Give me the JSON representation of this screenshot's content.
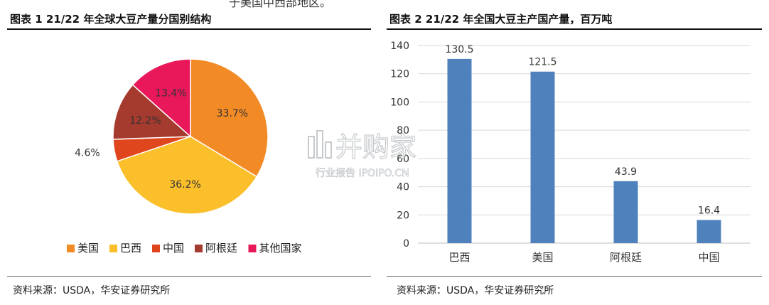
{
  "header": {
    "top_fragment": "于美国中西部地区。",
    "left_title": "图表 1 21/22 年全球大豆产量分国别结构",
    "right_title": "图表 2 21/22 年全国大豆主产国产量，百万吨"
  },
  "footer": {
    "left_source": "资料来源：USDA，华安证券研究所",
    "right_source": "资料来源：USDA，华安证券研究所"
  },
  "watermark": {
    "brand": "并购家",
    "sub": "行业报告 IPOIPO.CN"
  },
  "colors": {
    "us": "#F28A26",
    "brazil": "#FBBF2C",
    "china": "#E0461E",
    "argentina": "#A53A2E",
    "others": "#E8185A",
    "bar": "#4F81BD"
  },
  "chart_data": [
    {
      "type": "pie",
      "title": "",
      "labels": [
        "美国",
        "巴西",
        "中国",
        "阿根廷",
        "其他国家"
      ],
      "values": [
        33.7,
        36.2,
        4.6,
        12.2,
        13.4
      ],
      "value_labels": [
        "33.7%",
        "36.2%",
        "4.6%",
        "12.2%",
        "13.4%"
      ],
      "legend_position": "bottom"
    },
    {
      "type": "bar",
      "title": "",
      "categories": [
        "巴西",
        "美国",
        "阿根廷",
        "中国"
      ],
      "values": [
        130.5,
        121.5,
        43.9,
        16.4
      ],
      "ylim": [
        0,
        140
      ],
      "yticks": [
        0,
        20,
        40,
        60,
        80,
        100,
        120,
        140
      ],
      "grid": true,
      "xlabel": "",
      "ylabel": ""
    }
  ]
}
